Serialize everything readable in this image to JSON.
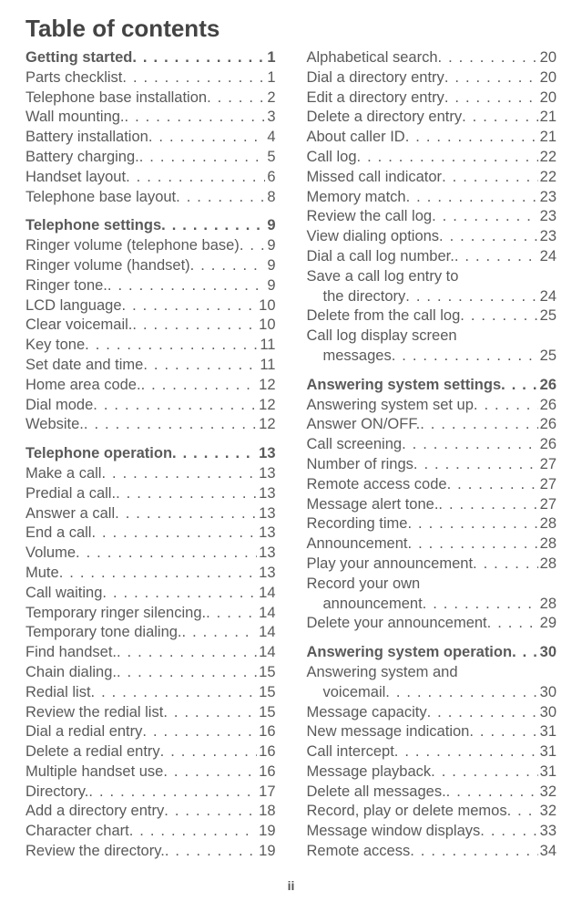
{
  "title": "Table of contents",
  "footer": "ii",
  "left": {
    "groups": [
      {
        "head": {
          "label": "Getting started",
          "page": "1"
        },
        "items": [
          {
            "label": "Parts checklist",
            "page": "1"
          },
          {
            "label": "Telephone base installation",
            "page": "2"
          },
          {
            "label": "Wall mounting.",
            "page": "3"
          },
          {
            "label": "Battery installation",
            "page": "4"
          },
          {
            "label": "Battery charging.",
            "page": "5"
          },
          {
            "label": "Handset layout",
            "page": "6"
          },
          {
            "label": "Telephone base layout",
            "page": "8"
          }
        ]
      },
      {
        "head": {
          "label": "Telephone settings",
          "page": "9"
        },
        "items": [
          {
            "label": "Ringer volume (telephone base)",
            "page": "9"
          },
          {
            "label": "Ringer volume (handset)",
            "page": "9"
          },
          {
            "label": "Ringer tone.",
            "page": "9"
          },
          {
            "label": "LCD language",
            "page": "10"
          },
          {
            "label": "Clear voicemail.",
            "page": "10"
          },
          {
            "label": "Key tone",
            "page": "11"
          },
          {
            "label": "Set date and time",
            "page": "11"
          },
          {
            "label": "Home area code.",
            "page": "12"
          },
          {
            "label": "Dial mode",
            "page": "12"
          },
          {
            "label": "Website.",
            "page": "12"
          }
        ]
      },
      {
        "head": {
          "label": "Telephone operation",
          "page": "13"
        },
        "items": [
          {
            "label": "Make a call",
            "page": "13"
          },
          {
            "label": "Predial a call.",
            "page": "13"
          },
          {
            "label": "Answer a call",
            "page": "13"
          },
          {
            "label": "End a call",
            "page": "13"
          },
          {
            "label": "Volume",
            "page": "13"
          },
          {
            "label": "Mute",
            "page": "13"
          },
          {
            "label": "Call waiting",
            "page": "14"
          },
          {
            "label": "Temporary ringer silencing.",
            "page": "14"
          },
          {
            "label": "Temporary tone dialing.",
            "page": "14"
          },
          {
            "label": "Find handset.",
            "page": "14"
          },
          {
            "label": "Chain dialing.",
            "page": "15"
          },
          {
            "label": "Redial list",
            "page": "15"
          },
          {
            "label": "Review the redial list",
            "page": "15"
          },
          {
            "label": "Dial a redial entry",
            "page": "16"
          },
          {
            "label": "Delete a redial entry",
            "page": "16"
          },
          {
            "label": "Multiple handset use",
            "page": "16"
          },
          {
            "label": "Directory.",
            "page": "17"
          },
          {
            "label": "Add a directory entry",
            "page": "18"
          },
          {
            "label": "Character chart",
            "page": "19"
          },
          {
            "label": "Review the directory.",
            "page": "19"
          }
        ]
      }
    ]
  },
  "right": {
    "groups": [
      {
        "head": null,
        "items": [
          {
            "label": "Alphabetical search",
            "page": "20"
          },
          {
            "label": "Dial a directory entry",
            "page": "20"
          },
          {
            "label": "Edit a directory entry",
            "page": "20"
          },
          {
            "label": "Delete a directory entry",
            "page": "21"
          },
          {
            "label": "About caller ID",
            "page": "21"
          },
          {
            "label": "Call log",
            "page": "22"
          },
          {
            "label": "Missed call indicator",
            "page": "22"
          },
          {
            "label": "Memory match",
            "page": "23"
          },
          {
            "label": "Review the call log",
            "page": "23"
          },
          {
            "label": "View dialing options",
            "page": "23"
          },
          {
            "label": "Dial a call log number.",
            "page": "24"
          },
          {
            "label": "Save a call log entry to",
            "cont": "the directory",
            "page": "24"
          },
          {
            "label": "Delete from the call log",
            "page": "25"
          },
          {
            "label": "Call log display screen",
            "cont": "messages",
            "page": "25"
          }
        ]
      },
      {
        "head": {
          "label": "Answering system settings",
          "page": "26"
        },
        "items": [
          {
            "label": "Answering system set up",
            "page": "26"
          },
          {
            "label": "Answer ON/OFF.",
            "page": "26"
          },
          {
            "label": "Call screening",
            "page": "26"
          },
          {
            "label": "Number of rings",
            "page": "27"
          },
          {
            "label": "Remote access code",
            "page": "27"
          },
          {
            "label": "Message alert tone.",
            "page": "27"
          },
          {
            "label": "Recording time",
            "page": "28"
          },
          {
            "label": "Announcement",
            "page": "28"
          },
          {
            "label": "Play your announcement",
            "page": "28"
          },
          {
            "label": "Record your own",
            "cont": "announcement",
            "page": "28"
          },
          {
            "label": "Delete your announcement",
            "page": "29"
          }
        ]
      },
      {
        "head": {
          "label": "Answering system operation",
          "page": "30"
        },
        "items": [
          {
            "label": "Answering system and",
            "cont": "voicemail",
            "page": "30"
          },
          {
            "label": "Message capacity",
            "page": "30"
          },
          {
            "label": "New message indication",
            "page": "31"
          },
          {
            "label": "Call intercept",
            "page": "31"
          },
          {
            "label": "Message playback",
            "page": "31"
          },
          {
            "label": "Delete all messages.",
            "page": "32"
          },
          {
            "label": "Record, play or delete memos",
            "page": "32"
          },
          {
            "label": "Message window displays",
            "page": "33"
          },
          {
            "label": "Remote access",
            "page": "34"
          }
        ]
      }
    ]
  }
}
